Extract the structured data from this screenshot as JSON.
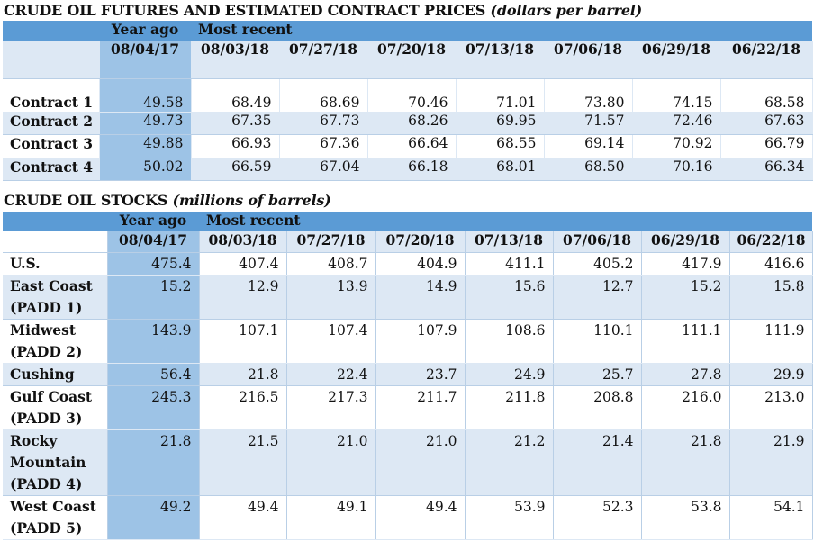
{
  "futures": {
    "title": "CRUDE OIL FUTURES AND ESTIMATED CONTRACT PRICES",
    "unit": "(dollars per barrel)",
    "year_ago_label": "Year ago",
    "most_recent_label": "Most recent",
    "dates": [
      "08/04/17",
      "08/03/18",
      "07/27/18",
      "07/20/18",
      "07/13/18",
      "07/06/18",
      "06/29/18",
      "06/22/18"
    ],
    "rows": [
      {
        "label": "Contract 1",
        "values": [
          "49.58",
          "68.49",
          "68.69",
          "70.46",
          "71.01",
          "73.80",
          "74.15",
          "68.58"
        ]
      },
      {
        "label": "Contract 2",
        "values": [
          "49.73",
          "67.35",
          "67.73",
          "68.26",
          "69.95",
          "71.57",
          "72.46",
          "67.63"
        ]
      },
      {
        "label": "Contract 3",
        "values": [
          "49.88",
          "66.93",
          "67.36",
          "66.64",
          "68.55",
          "69.14",
          "70.92",
          "66.79"
        ]
      },
      {
        "label": "Contract 4",
        "values": [
          "50.02",
          "66.59",
          "67.04",
          "66.18",
          "68.01",
          "68.50",
          "70.16",
          "66.34"
        ]
      }
    ]
  },
  "stocks": {
    "title": "CRUDE OIL STOCKS",
    "unit": "(millions of barrels)",
    "year_ago_label": "Year ago",
    "most_recent_label": "Most recent",
    "dates": [
      "08/04/17",
      "08/03/18",
      "07/27/18",
      "07/20/18",
      "07/13/18",
      "07/06/18",
      "06/29/18",
      "06/22/18"
    ],
    "rows": [
      {
        "label": "U.S.",
        "values": [
          "475.4",
          "407.4",
          "408.7",
          "404.9",
          "411.1",
          "405.2",
          "417.9",
          "416.6"
        ]
      },
      {
        "label": "East Coast (PADD 1)",
        "values": [
          "15.2",
          "12.9",
          "13.9",
          "14.9",
          "15.6",
          "12.7",
          "15.2",
          "15.8"
        ]
      },
      {
        "label": "Midwest (PADD 2)",
        "values": [
          "143.9",
          "107.1",
          "107.4",
          "107.9",
          "108.6",
          "110.1",
          "111.1",
          "111.9"
        ]
      },
      {
        "label": "Cushing",
        "values": [
          "56.4",
          "21.8",
          "22.4",
          "23.7",
          "24.9",
          "25.7",
          "27.8",
          "29.9"
        ]
      },
      {
        "label": "Gulf Coast (PADD 3)",
        "values": [
          "245.3",
          "216.5",
          "217.3",
          "211.7",
          "211.8",
          "208.8",
          "216.0",
          "213.0"
        ]
      },
      {
        "label": "Rocky Mountain (PADD 4)",
        "values": [
          "21.8",
          "21.5",
          "21.0",
          "21.0",
          "21.2",
          "21.4",
          "21.8",
          "21.9"
        ]
      },
      {
        "label": "West Coast (PADD 5)",
        "values": [
          "49.2",
          "49.4",
          "49.1",
          "49.4",
          "53.9",
          "52.3",
          "53.8",
          "54.1"
        ]
      }
    ]
  }
}
